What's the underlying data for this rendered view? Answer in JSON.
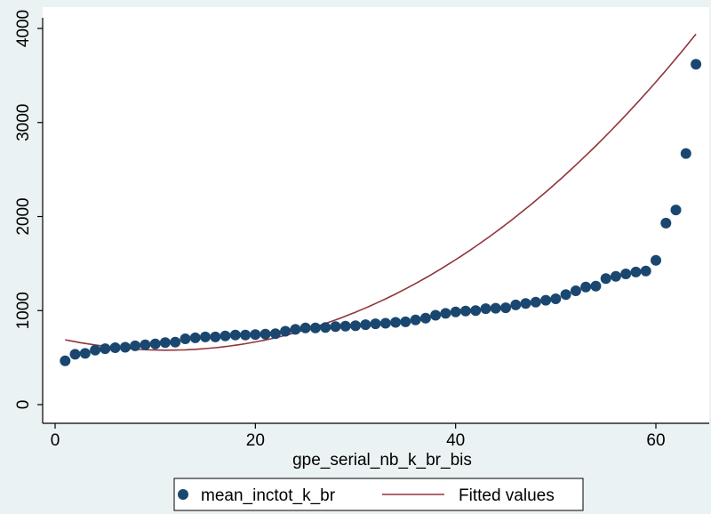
{
  "colors": {
    "background": "#eaf2f3",
    "plot_area": "#ffffff",
    "marker": "#1a476f",
    "fit_line": "#90353b",
    "axis": "#000000"
  },
  "legend": {
    "entries": [
      {
        "name": "mean_inctot_k_br",
        "symbol": "marker"
      },
      {
        "name": "Fitted values",
        "symbol": "line"
      }
    ]
  },
  "chart_data": {
    "type": "scatter",
    "title": "",
    "xlabel": "gpe_serial_nb_k_br_bis",
    "ylabel": "",
    "xlim": [
      0,
      64
    ],
    "ylim": [
      0,
      4000
    ],
    "xticks": [
      0,
      20,
      40,
      60
    ],
    "yticks": [
      0,
      1000,
      2000,
      3000,
      4000
    ],
    "grid": false,
    "legend_placement": "bottom",
    "series": [
      {
        "name": "mean_inctot_k_br",
        "kind": "scatter",
        "x": [
          1,
          2,
          3,
          4,
          5,
          6,
          7,
          8,
          9,
          10,
          11,
          12,
          13,
          14,
          15,
          16,
          17,
          18,
          19,
          20,
          21,
          22,
          23,
          24,
          25,
          26,
          27,
          28,
          29,
          30,
          31,
          32,
          33,
          34,
          35,
          36,
          37,
          38,
          39,
          40,
          41,
          42,
          43,
          44,
          45,
          46,
          47,
          48,
          49,
          50,
          51,
          52,
          53,
          54,
          55,
          56,
          57,
          58,
          59,
          60,
          61,
          62,
          63,
          64
        ],
        "y": [
          465,
          535,
          545,
          580,
          595,
          605,
          610,
          625,
          635,
          645,
          660,
          665,
          700,
          710,
          720,
          720,
          730,
          740,
          740,
          745,
          750,
          755,
          780,
          800,
          815,
          815,
          820,
          830,
          835,
          840,
          850,
          860,
          865,
          875,
          880,
          900,
          920,
          950,
          970,
          985,
          995,
          1000,
          1020,
          1025,
          1030,
          1060,
          1075,
          1090,
          1110,
          1125,
          1170,
          1210,
          1250,
          1260,
          1340,
          1365,
          1390,
          1410,
          1420,
          1535,
          1930,
          2070,
          2670,
          3620
        ]
      },
      {
        "name": "Fitted values",
        "kind": "line",
        "coefficients": [
          712.3,
          -23.68,
          1.03,
          0.002
        ]
      }
    ]
  }
}
